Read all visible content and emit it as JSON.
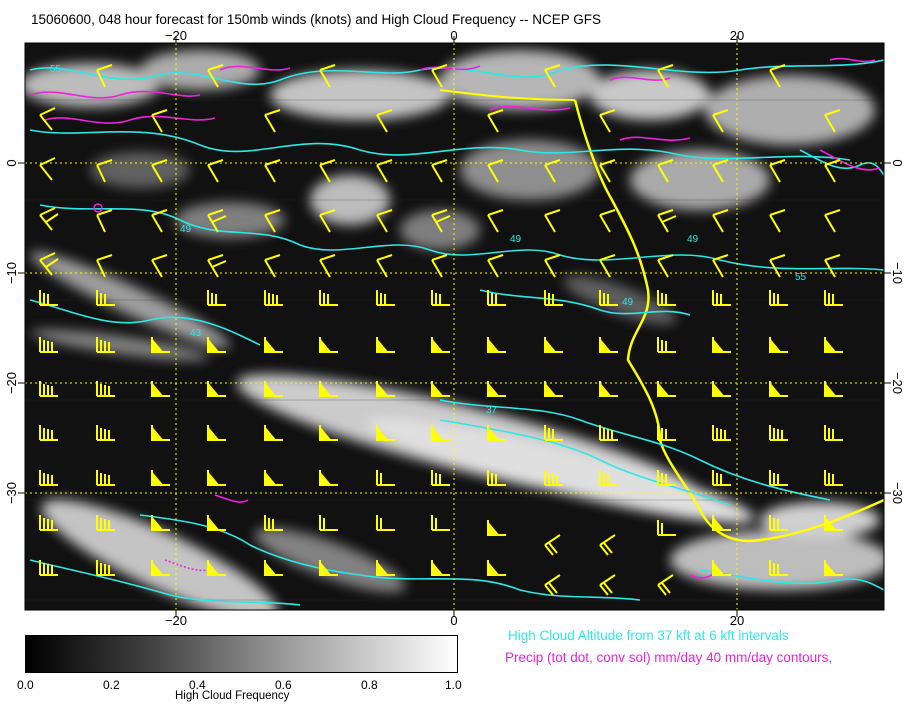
{
  "title": "15060600, 048 hour forecast for 150mb winds (knots) and High Cloud Frequency -- NCEP GFS",
  "axes": {
    "lon_ticks": [
      "−20",
      "0",
      "20"
    ],
    "lat_ticks": [
      "0",
      "−10",
      "−20",
      "−30"
    ]
  },
  "contour_labels": [
    "55",
    "49",
    "49",
    "49",
    "55",
    "43",
    "49",
    "37"
  ],
  "legend": {
    "cloud_altitude": "High Cloud Altitude from 37 kft at 6 kft intervals",
    "precip": "Precip (tot dot, conv sol) mm/day 40 mm/day contours,"
  },
  "colorbar": {
    "ticks": [
      "0.0",
      "0.2",
      "0.4",
      "0.6",
      "0.8",
      "1.0"
    ],
    "label": "High Cloud Frequency"
  },
  "colors": {
    "background": "#111111",
    "winds": "#ffff00",
    "cloud_altitude_contours": "#2ee8e8",
    "precip_contours": "#ee22dd",
    "grid": "#ffff00"
  }
}
